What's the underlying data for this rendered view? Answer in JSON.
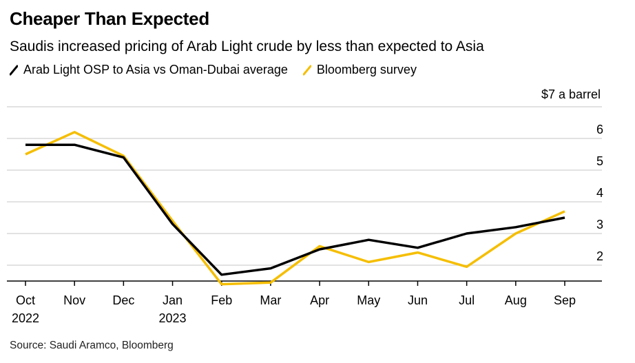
{
  "header": {
    "title": "Cheaper Than Expected",
    "subtitle": "Saudis increased pricing of Arab Light crude by less than expected to Asia"
  },
  "legend": [
    {
      "label": "Arab Light OSP to Asia vs Oman-Dubai average",
      "color": "#000000"
    },
    {
      "label": "Bloomberg survey",
      "color": "#f5be00"
    }
  ],
  "footer": {
    "source": "Source: Saudi Aramco, Bloomberg"
  },
  "chart_data": {
    "type": "line",
    "title": "Cheaper Than Expected",
    "subtitle": "Saudis increased pricing of Arab Light crude by less than expected to Asia",
    "unit_label": "$7 a barrel",
    "x": [
      "Oct",
      "Nov",
      "Dec",
      "Jan",
      "Feb",
      "Mar",
      "Apr",
      "May",
      "Jun",
      "Jul",
      "Aug",
      "Sep"
    ],
    "x_year_labels": {
      "Oct": "2022",
      "Jan": "2023"
    },
    "y_ticks": [
      2,
      3,
      4,
      5,
      6,
      7
    ],
    "y_tick_labels": [
      "2",
      "3",
      "4",
      "5",
      "6",
      "$7 a barrel"
    ],
    "ylim": [
      1.5,
      7
    ],
    "grid": true,
    "legend_position": "top-left",
    "series": [
      {
        "name": "Arab Light OSP to Asia vs Oman-Dubai average",
        "color": "#000000",
        "values": [
          5.8,
          5.8,
          5.4,
          3.3,
          1.7,
          1.9,
          2.5,
          2.8,
          2.55,
          3.0,
          3.2,
          3.5
        ]
      },
      {
        "name": "Bloomberg survey",
        "color": "#f5be00",
        "values": [
          5.5,
          6.2,
          5.45,
          3.4,
          1.4,
          1.45,
          2.6,
          2.1,
          2.4,
          1.95,
          3.0,
          3.7
        ]
      }
    ]
  }
}
